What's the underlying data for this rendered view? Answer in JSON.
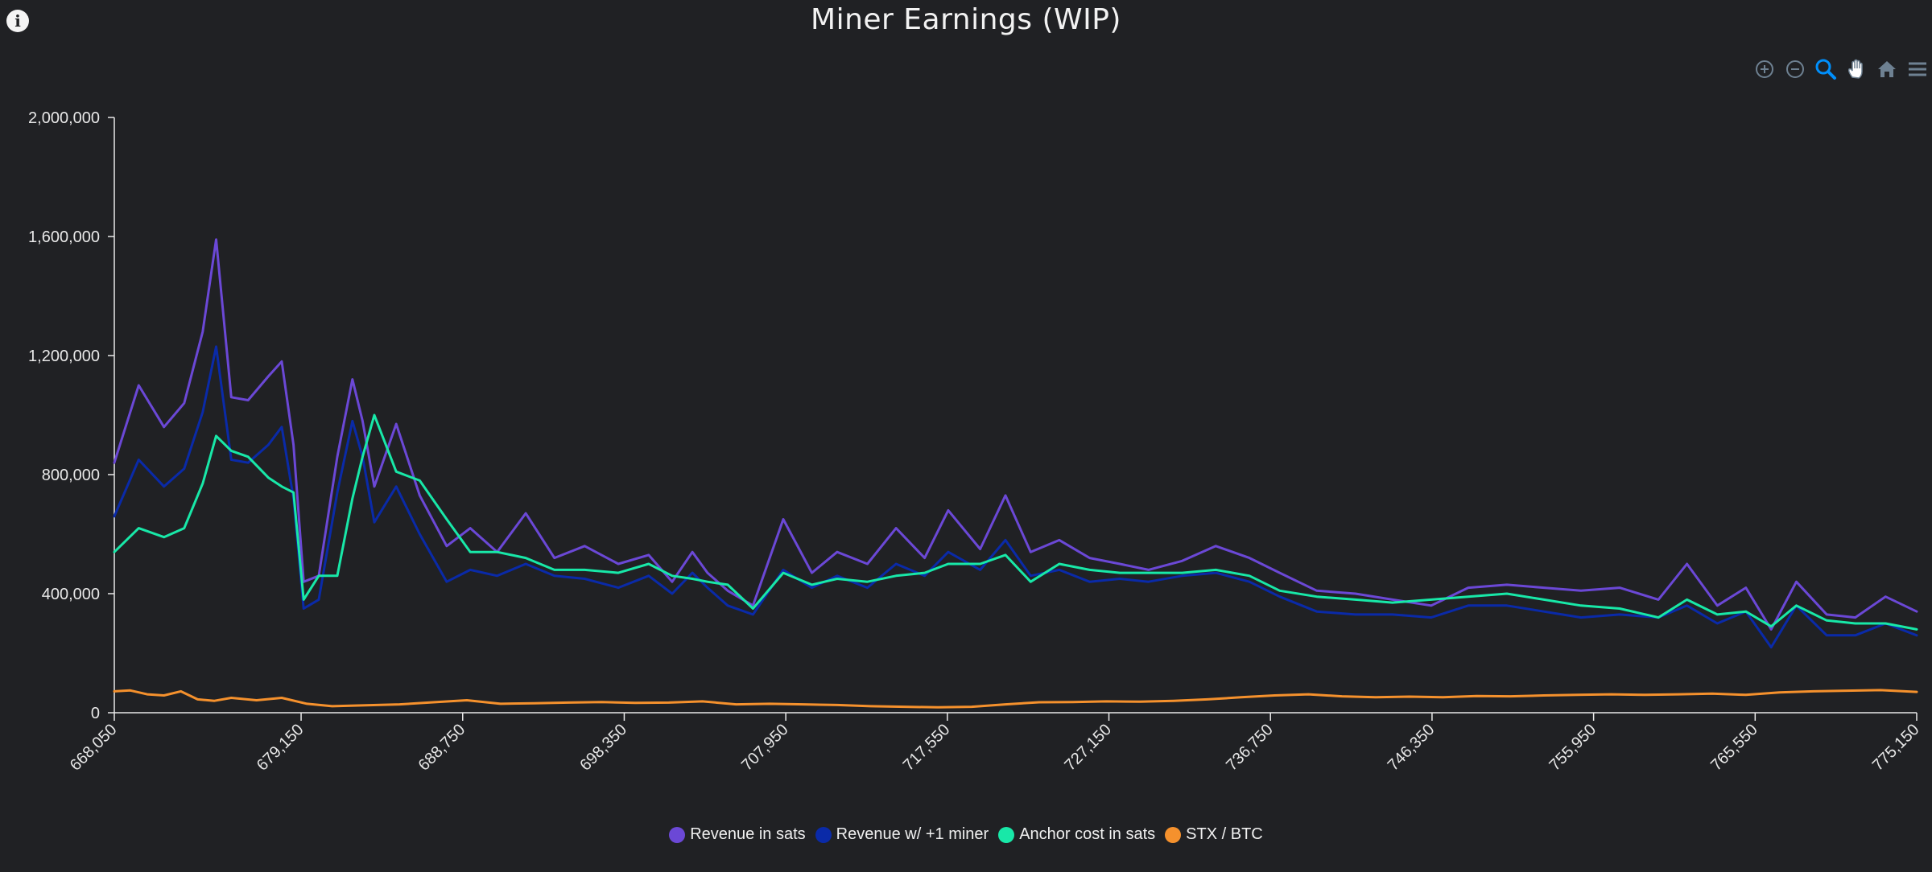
{
  "info_icon_glyph": "i",
  "toolbar": {
    "items": [
      {
        "name": "zoom-in-icon",
        "color": "#6e8192"
      },
      {
        "name": "zoom-out-icon",
        "color": "#6e8192"
      },
      {
        "name": "selection-zoom-icon",
        "color": "#008ffb"
      },
      {
        "name": "pan-hand-icon",
        "color": "#6e8192"
      },
      {
        "name": "reset-home-icon",
        "color": "#6e8192"
      },
      {
        "name": "menu-icon",
        "color": "#6e8192"
      }
    ]
  },
  "chart_data": {
    "type": "line",
    "title": "Miner Earnings (WIP)",
    "xlabel": "",
    "ylabel": "",
    "xlim": [
      668050,
      775150
    ],
    "ylim": [
      0,
      2000000
    ],
    "grid": false,
    "legend_position": "bottom-center",
    "x_ticks": [
      668050,
      679150,
      688750,
      698350,
      707950,
      717550,
      727150,
      736750,
      746350,
      755950,
      765550,
      775150
    ],
    "x_tick_labels": [
      "668,050",
      "679,150",
      "688,750",
      "698,350",
      "707,950",
      "717,550",
      "727,150",
      "736,750",
      "746,350",
      "755,950",
      "765,550",
      "775,150"
    ],
    "y_ticks": [
      0,
      400000,
      800000,
      1200000,
      1600000,
      2000000
    ],
    "y_tick_labels": [
      "0",
      "400,000",
      "800,000",
      "1,200,000",
      "1,600,000",
      "2,000,000"
    ],
    "series": [
      {
        "name": "Revenue in sats",
        "color": "#6b48d6",
        "x": [
          668050,
          669500,
          671000,
          672200,
          673300,
          674100,
          675000,
          676000,
          677200,
          678000,
          678700,
          679300,
          680200,
          681300,
          682200,
          682800,
          683500,
          684800,
          686200,
          687800,
          689200,
          690800,
          692500,
          694200,
          696000,
          698000,
          699800,
          701200,
          702400,
          703300,
          704500,
          706000,
          707800,
          709500,
          711000,
          712800,
          714500,
          716200,
          717600,
          719500,
          721000,
          722500,
          724200,
          726000,
          727800,
          729500,
          731500,
          733500,
          735500,
          737300,
          739500,
          741800,
          744000,
          746300,
          748500,
          750800,
          753000,
          755200,
          757500,
          759800,
          761500,
          763300,
          765000,
          766500,
          768000,
          769800,
          771500,
          773300,
          775150
        ],
        "y": [
          840000,
          1100000,
          960000,
          1040000,
          1280000,
          1590000,
          1060000,
          1050000,
          1130000,
          1180000,
          900000,
          440000,
          460000,
          860000,
          1120000,
          980000,
          760000,
          970000,
          730000,
          560000,
          620000,
          540000,
          670000,
          520000,
          560000,
          500000,
          530000,
          440000,
          540000,
          470000,
          410000,
          360000,
          650000,
          470000,
          540000,
          500000,
          620000,
          520000,
          680000,
          550000,
          730000,
          540000,
          580000,
          520000,
          500000,
          480000,
          510000,
          560000,
          520000,
          470000,
          410000,
          400000,
          380000,
          360000,
          420000,
          430000,
          420000,
          410000,
          420000,
          380000,
          500000,
          360000,
          420000,
          280000,
          440000,
          330000,
          320000,
          390000,
          340000
        ]
      },
      {
        "name": "Revenue w/ +1 miner",
        "color": "#0a2aa8",
        "x": [
          668050,
          669500,
          671000,
          672200,
          673300,
          674100,
          675000,
          676000,
          677200,
          678000,
          678700,
          679300,
          680200,
          681300,
          682200,
          682800,
          683500,
          684800,
          686200,
          687800,
          689200,
          690800,
          692500,
          694200,
          696000,
          698000,
          699800,
          701200,
          702400,
          703300,
          704500,
          706000,
          707800,
          709500,
          711000,
          712800,
          714500,
          716200,
          717600,
          719500,
          721000,
          722500,
          724200,
          726000,
          727800,
          729500,
          731500,
          733500,
          735500,
          737300,
          739500,
          741800,
          744000,
          746300,
          748500,
          750800,
          753000,
          755200,
          757500,
          759800,
          761500,
          763300,
          765000,
          766500,
          768000,
          769800,
          771500,
          773300,
          775150
        ],
        "y": [
          660000,
          850000,
          760000,
          820000,
          1010000,
          1230000,
          850000,
          840000,
          900000,
          960000,
          720000,
          350000,
          380000,
          740000,
          980000,
          860000,
          640000,
          760000,
          600000,
          440000,
          480000,
          460000,
          500000,
          460000,
          450000,
          420000,
          460000,
          400000,
          470000,
          420000,
          360000,
          330000,
          480000,
          420000,
          460000,
          420000,
          500000,
          460000,
          540000,
          480000,
          580000,
          460000,
          480000,
          440000,
          450000,
          440000,
          460000,
          470000,
          440000,
          390000,
          340000,
          330000,
          330000,
          320000,
          360000,
          360000,
          340000,
          320000,
          330000,
          320000,
          360000,
          300000,
          340000,
          220000,
          360000,
          260000,
          260000,
          300000,
          260000
        ]
      },
      {
        "name": "Anchor cost in sats",
        "color": "#18e8a8",
        "x": [
          668050,
          669500,
          671000,
          672200,
          673300,
          674100,
          675000,
          676000,
          677200,
          678000,
          678700,
          679300,
          680200,
          681300,
          682200,
          682800,
          683500,
          684800,
          686200,
          687800,
          689200,
          690800,
          692500,
          694200,
          696000,
          698000,
          699800,
          701200,
          702400,
          703300,
          704500,
          706000,
          707800,
          709500,
          711000,
          712800,
          714500,
          716200,
          717600,
          719500,
          721000,
          722500,
          724200,
          726000,
          727800,
          729500,
          731500,
          733500,
          735500,
          737300,
          739500,
          741800,
          744000,
          746300,
          748500,
          750800,
          753000,
          755200,
          757500,
          759800,
          761500,
          763300,
          765000,
          766500,
          768000,
          769800,
          771500,
          773300,
          775150
        ],
        "y": [
          540000,
          620000,
          590000,
          620000,
          770000,
          930000,
          880000,
          860000,
          790000,
          760000,
          740000,
          380000,
          460000,
          460000,
          720000,
          860000,
          1000000,
          810000,
          780000,
          650000,
          540000,
          540000,
          520000,
          480000,
          480000,
          470000,
          500000,
          460000,
          450000,
          440000,
          430000,
          350000,
          470000,
          430000,
          450000,
          440000,
          460000,
          470000,
          500000,
          500000,
          530000,
          440000,
          500000,
          480000,
          470000,
          470000,
          470000,
          480000,
          460000,
          410000,
          390000,
          380000,
          370000,
          380000,
          390000,
          400000,
          380000,
          360000,
          350000,
          320000,
          380000,
          330000,
          340000,
          290000,
          360000,
          310000,
          300000,
          300000,
          280000
        ]
      },
      {
        "name": "STX / BTC",
        "color": "#f5912d",
        "x": [
          668050,
          669000,
          670000,
          671000,
          672000,
          673000,
          674000,
          675000,
          676500,
          678000,
          679500,
          681000,
          683000,
          685000,
          687000,
          689000,
          691000,
          693000,
          695000,
          697000,
          699000,
          701000,
          703000,
          705000,
          707000,
          709000,
          711000,
          713000,
          715000,
          717000,
          719000,
          721000,
          723000,
          725000,
          727000,
          729000,
          731000,
          733000,
          735000,
          737000,
          739000,
          741000,
          743000,
          745000,
          747000,
          749000,
          751000,
          753000,
          755000,
          757000,
          759000,
          761000,
          763000,
          765000,
          767000,
          769000,
          771000,
          773000,
          775150
        ],
        "y": [
          72000,
          75000,
          62000,
          58000,
          72000,
          45000,
          40000,
          50000,
          42000,
          50000,
          30000,
          22000,
          25000,
          28000,
          35000,
          42000,
          30000,
          32000,
          34000,
          36000,
          33000,
          34000,
          38000,
          28000,
          30000,
          28000,
          26000,
          22000,
          20000,
          18000,
          20000,
          28000,
          35000,
          36000,
          38000,
          37000,
          40000,
          45000,
          52000,
          58000,
          62000,
          55000,
          52000,
          54000,
          52000,
          56000,
          55000,
          58000,
          60000,
          62000,
          60000,
          62000,
          64000,
          60000,
          68000,
          72000,
          74000,
          76000,
          70000
        ]
      }
    ]
  }
}
